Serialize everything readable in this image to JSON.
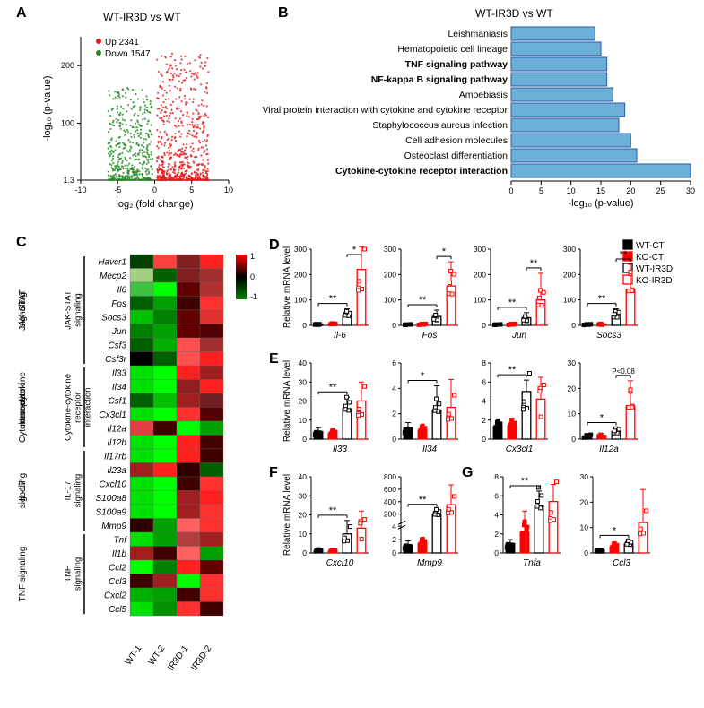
{
  "panelA": {
    "label": "A",
    "title": "WT-IR3D vs WT",
    "up_label": "Up 2341",
    "down_label": "Down 1547",
    "xlabel": "log₂  (fold change)",
    "ylabel": "-log₁₀ (p-value)",
    "xlim": [
      -10,
      10
    ],
    "ylim": [
      1.3,
      250
    ],
    "xticks": [
      -10,
      -5,
      0,
      5,
      10
    ],
    "yticks": [
      1.3,
      100,
      200
    ],
    "up_color": "#e41a1c",
    "down_color": "#228b22"
  },
  "panelB": {
    "label": "B",
    "title": "WT-IR3D vs WT",
    "xlabel": "-log₁₀ (p-value)",
    "bar_color": "#6baed6",
    "border_color": "#2a5aa8",
    "xlim": [
      0,
      30
    ],
    "xticks": [
      0,
      5,
      10,
      15,
      20,
      25,
      30
    ],
    "pathways": [
      {
        "name": "Leishmaniasis",
        "value": 14,
        "bold": false
      },
      {
        "name": "Hematopoietic cell lineage",
        "value": 15,
        "bold": false
      },
      {
        "name": "TNF signaling pathway",
        "value": 16,
        "bold": true
      },
      {
        "name": "NF-kappa B signaling pathway",
        "value": 16,
        "bold": true
      },
      {
        "name": "Amoebiasis",
        "value": 17,
        "bold": false
      },
      {
        "name": "Viral protein interaction with cytokine and cytokine receptor",
        "value": 19,
        "bold": false
      },
      {
        "name": "Staphylococcus aureus infection",
        "value": 18,
        "bold": false
      },
      {
        "name": "Cell adhesion molecules",
        "value": 20,
        "bold": false
      },
      {
        "name": "Osteoclast differentiation",
        "value": 21,
        "bold": false
      },
      {
        "name": "Cytokine-cytokine receptor interaction",
        "value": 30,
        "bold": true
      }
    ]
  },
  "panelC": {
    "label": "C",
    "columns": [
      "WT-1",
      "WT-2",
      "IR3D-1",
      "IR3D-2"
    ],
    "groups": [
      {
        "name": "JAK-STAT signaling",
        "genes": [
          "Havcr1",
          "Mecp2",
          "Il6",
          "Fos",
          "Socs3",
          "Jun",
          "Csf3",
          "Csf3r"
        ]
      },
      {
        "name": "Cytokine-cytokine receptor interaction",
        "genes": [
          "Il33",
          "Il34",
          "Csf1",
          "Cx3cl1",
          "Il12a",
          "Il12b"
        ]
      },
      {
        "name": "IL-17 signaling",
        "genes": [
          "Il17rb",
          "Il23a",
          "Cxcl10",
          "S100a8",
          "S100a9",
          "Mmp9"
        ]
      },
      {
        "name": "TNF signaling",
        "genes": [
          "Tnf",
          "Il1b",
          "Ccl2",
          "Ccl3",
          "Cxcl2",
          "Ccl5"
        ]
      }
    ],
    "colorbar": {
      "min": -1,
      "mid": 0,
      "max": 1,
      "low": "#008000",
      "midc": "#000000",
      "high": "#ff0000"
    },
    "cells": [
      [
        "#004000",
        "#ff4040",
        "#802020",
        "#ff2020"
      ],
      [
        "#a0d080",
        "#006000",
        "#802020",
        "#a03030"
      ],
      [
        "#40c040",
        "#00ff00",
        "#600000",
        "#b03030"
      ],
      [
        "#006000",
        "#00a000",
        "#400000",
        "#ff3030"
      ],
      [
        "#00c000",
        "#008000",
        "#600000",
        "#e03030"
      ],
      [
        "#008000",
        "#00a000",
        "#600000",
        "#500000"
      ],
      [
        "#006000",
        "#00b000",
        "#ff5050",
        "#a03030"
      ],
      [
        "#000000",
        "#006000",
        "#ff5050",
        "#ff2020"
      ],
      [
        "#00e000",
        "#00ff00",
        "#ff2020",
        "#a02020"
      ],
      [
        "#00e000",
        "#00ff00",
        "#902020",
        "#ff2020"
      ],
      [
        "#006000",
        "#00c000",
        "#a02020",
        "#702020"
      ],
      [
        "#00e000",
        "#00ff00",
        "#ff3030",
        "#500000"
      ],
      [
        "#e04040",
        "#400000",
        "#00ff00",
        "#00a000"
      ],
      [
        "#00e000",
        "#00ff00",
        "#ff2020",
        "#450000"
      ],
      [
        "#00e000",
        "#00ff00",
        "#ff2020",
        "#400000"
      ],
      [
        "#a02020",
        "#ff2020",
        "#300000",
        "#006000"
      ],
      [
        "#00e000",
        "#00ff00",
        "#400000",
        "#ff3030"
      ],
      [
        "#00e000",
        "#00ff00",
        "#a02020",
        "#ff2020"
      ],
      [
        "#00e000",
        "#00ff00",
        "#a02020",
        "#ff3030"
      ],
      [
        "#300000",
        "#00a000",
        "#ff6060",
        "#ff3030"
      ],
      [
        "#00e000",
        "#00a000",
        "#b04040",
        "#a02020"
      ],
      [
        "#a02020",
        "#400000",
        "#ff6060",
        "#00a000"
      ],
      [
        "#00ff00",
        "#008000",
        "#ff2020",
        "#600000"
      ],
      [
        "#400000",
        "#a02020",
        "#00ff00",
        "#ff3030"
      ],
      [
        "#00b000",
        "#00a000",
        "#400000",
        "#ff3030"
      ],
      [
        "#00e000",
        "#009000",
        "#ff3030",
        "#400000"
      ]
    ]
  },
  "legendD": {
    "items": [
      {
        "label": "WT-CT",
        "fill": "#000000",
        "stroke": "#000000"
      },
      {
        "label": "KO-CT",
        "fill": "#ff0000",
        "stroke": "#ff0000"
      },
      {
        "label": "WT-IR3D",
        "fill": "none",
        "stroke": "#000000"
      },
      {
        "label": "KO-IR3D",
        "fill": "none",
        "stroke": "#ff0000"
      }
    ]
  },
  "barCharts": {
    "rowD": {
      "label": "D",
      "ylabel": "Relative mRNA level",
      "charts": [
        {
          "gene": "Il-6",
          "ymax": 300,
          "ystep": 100,
          "bars": [
            5,
            5,
            40,
            220
          ],
          "err": [
            3,
            3,
            25,
            90
          ],
          "sig": [
            {
              "i": 0,
              "j": 2,
              "l": "**"
            },
            {
              "i": 2,
              "j": 3,
              "l": "*"
            }
          ]
        },
        {
          "gene": "Fos",
          "ymax": 300,
          "ystep": 100,
          "bars": [
            3,
            4,
            35,
            155
          ],
          "err": [
            2,
            2,
            25,
            95
          ],
          "sig": [
            {
              "i": 0,
              "j": 2,
              "l": "**"
            },
            {
              "i": 2,
              "j": 3,
              "l": "*"
            }
          ]
        },
        {
          "gene": "Jun",
          "ymax": 300,
          "ystep": 100,
          "bars": [
            3,
            4,
            30,
            100
          ],
          "err": [
            2,
            3,
            20,
            105
          ],
          "sig": [
            {
              "i": 0,
              "j": 2,
              "l": "**"
            },
            {
              "i": 2,
              "j": 3,
              "l": "**"
            }
          ]
        },
        {
          "gene": "Socs3",
          "ymax": 300,
          "ystep": 100,
          "bars": [
            3,
            5,
            40,
            140
          ],
          "err": [
            2,
            3,
            25,
            100
          ],
          "sig": [
            {
              "i": 0,
              "j": 2,
              "l": "**"
            },
            {
              "i": 2,
              "j": 3,
              "l": "**"
            }
          ]
        }
      ]
    },
    "rowE": {
      "label": "E",
      "ylabel": "Relative mRNA level",
      "charts": [
        {
          "gene": "Il33",
          "ymax": 40,
          "ystep": 10,
          "bars": [
            4,
            3,
            16,
            20
          ],
          "err": [
            2,
            2,
            6,
            10
          ],
          "sig": [
            {
              "i": 0,
              "j": 2,
              "l": "**"
            }
          ]
        },
        {
          "gene": "Il34",
          "ymax": 6,
          "ystep": 2,
          "bars": [
            0.9,
            0.7,
            2.3,
            2.5
          ],
          "err": [
            0.4,
            0.3,
            1.9,
            2.2
          ],
          "sig": [
            {
              "i": 0,
              "j": 2,
              "l": "*"
            }
          ]
        },
        {
          "gene": "Cx3cl1",
          "ymax": 8,
          "ystep": 2,
          "bars": [
            1.3,
            1.4,
            5,
            4.2
          ],
          "err": [
            0.5,
            0.8,
            1.2,
            2.3
          ],
          "sig": [
            {
              "i": 0,
              "j": 2,
              "l": "**"
            }
          ]
        },
        {
          "gene": "Il12a",
          "ymax": 30,
          "ystep": 10,
          "bars": [
            1.2,
            1.5,
            3,
            13
          ],
          "err": [
            0.6,
            0.7,
            1.4,
            10
          ],
          "sig": [
            {
              "i": 0,
              "j": 2,
              "l": "*"
            },
            {
              "i": 2,
              "j": 3,
              "l": "P<0.08"
            }
          ]
        }
      ]
    },
    "rowF": {
      "label": "F",
      "ylabel": "Relative mRNA level",
      "charts": [
        {
          "gene": "Cxcl10",
          "ymax": 40,
          "ystep": 10,
          "bars": [
            1.2,
            1,
            10,
            13
          ],
          "err": [
            0.5,
            0.5,
            7,
            9
          ],
          "sig": [
            {
              "i": 0,
              "j": 2,
              "l": "**"
            }
          ]
        },
        {
          "gene": "Mmp9",
          "ymax": 800,
          "ystep": 200,
          "breakAt": 4,
          "lowMax": 4,
          "lowStep": 2,
          "bars": [
            1.2,
            1.4,
            200,
            350
          ],
          "err": [
            0.6,
            0.8,
            70,
            320
          ],
          "sig": [
            {
              "i": 0,
              "j": 2,
              "l": "**"
            }
          ]
        }
      ]
    },
    "rowG": {
      "label": "G",
      "charts": [
        {
          "gene": "Tnfa",
          "ymax": 8,
          "ystep": 2,
          "bars": [
            1,
            2.2,
            5,
            5.4
          ],
          "err": [
            0.4,
            2.2,
            1.5,
            1.8
          ],
          "sig": [
            {
              "i": 0,
              "j": 2,
              "l": "**"
            }
          ]
        },
        {
          "gene": "Ccl3",
          "ymax": 30,
          "ystep": 10,
          "bars": [
            1.2,
            2.5,
            3.5,
            12
          ],
          "err": [
            0.6,
            1.3,
            1.3,
            13
          ],
          "sig": [
            {
              "i": 0,
              "j": 2,
              "l": "*"
            }
          ]
        }
      ]
    },
    "groupFills": [
      "#000000",
      "#ff0000",
      "none",
      "none"
    ],
    "groupStrokes": [
      "#000000",
      "#ff0000",
      "#000000",
      "#ff0000"
    ]
  }
}
